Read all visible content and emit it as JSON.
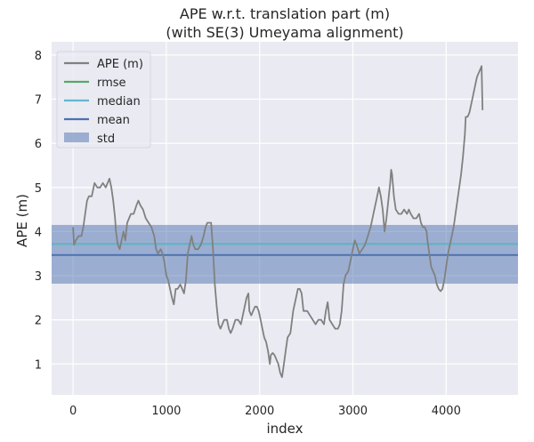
{
  "chart_data": {
    "type": "line",
    "title": "APE w.r.t. translation part (m)",
    "subtitle": "(with SE(3) Umeyama alignment)",
    "xlabel": "index",
    "ylabel": "APE (m)",
    "xlim": [
      -230,
      4770
    ],
    "ylim": [
      0.3,
      8.3
    ],
    "xticks": [
      0,
      1000,
      2000,
      3000,
      4000
    ],
    "yticks": [
      1,
      2,
      3,
      4,
      5,
      6,
      7,
      8
    ],
    "grid": true,
    "legend_position": "top-left",
    "stats": {
      "rmse": 3.72,
      "median": 3.72,
      "mean": 3.47,
      "std_low": 2.82,
      "std_high": 4.15
    },
    "legend": [
      {
        "key": "ape",
        "label": "APE (m)",
        "kind": "line",
        "color": "#808080"
      },
      {
        "key": "rmse",
        "label": "rmse",
        "kind": "line",
        "color": "#55a868"
      },
      {
        "key": "median",
        "label": "median",
        "kind": "line",
        "color": "#64b5cd"
      },
      {
        "key": "mean",
        "label": "mean",
        "kind": "line",
        "color": "#4c72b0"
      },
      {
        "key": "std",
        "label": "std",
        "kind": "patch",
        "color": "#4c72b0"
      }
    ],
    "series": [
      {
        "name": "APE (m)",
        "color": "#808080",
        "points": [
          [
            0,
            4.1
          ],
          [
            10,
            3.7
          ],
          [
            30,
            3.8
          ],
          [
            60,
            3.9
          ],
          [
            90,
            3.9
          ],
          [
            110,
            4.1
          ],
          [
            130,
            4.4
          ],
          [
            150,
            4.7
          ],
          [
            170,
            4.8
          ],
          [
            200,
            4.8
          ],
          [
            230,
            5.1
          ],
          [
            260,
            5.0
          ],
          [
            290,
            5.0
          ],
          [
            320,
            5.1
          ],
          [
            350,
            5.0
          ],
          [
            370,
            5.1
          ],
          [
            390,
            5.2
          ],
          [
            410,
            5.0
          ],
          [
            430,
            4.7
          ],
          [
            450,
            4.3
          ],
          [
            460,
            4.0
          ],
          [
            480,
            3.7
          ],
          [
            500,
            3.6
          ],
          [
            520,
            3.8
          ],
          [
            540,
            4.0
          ],
          [
            560,
            3.8
          ],
          [
            580,
            4.2
          ],
          [
            600,
            4.3
          ],
          [
            620,
            4.4
          ],
          [
            650,
            4.4
          ],
          [
            680,
            4.6
          ],
          [
            700,
            4.7
          ],
          [
            720,
            4.6
          ],
          [
            750,
            4.5
          ],
          [
            780,
            4.3
          ],
          [
            810,
            4.2
          ],
          [
            840,
            4.1
          ],
          [
            870,
            3.9
          ],
          [
            890,
            3.6
          ],
          [
            910,
            3.5
          ],
          [
            940,
            3.6
          ],
          [
            960,
            3.5
          ],
          [
            980,
            3.3
          ],
          [
            1000,
            3.0
          ],
          [
            1020,
            2.9
          ],
          [
            1040,
            2.7
          ],
          [
            1060,
            2.5
          ],
          [
            1080,
            2.35
          ],
          [
            1100,
            2.7
          ],
          [
            1120,
            2.7
          ],
          [
            1150,
            2.8
          ],
          [
            1170,
            2.7
          ],
          [
            1190,
            2.6
          ],
          [
            1210,
            2.9
          ],
          [
            1230,
            3.5
          ],
          [
            1250,
            3.7
          ],
          [
            1270,
            3.9
          ],
          [
            1290,
            3.7
          ],
          [
            1310,
            3.6
          ],
          [
            1340,
            3.6
          ],
          [
            1370,
            3.7
          ],
          [
            1400,
            3.9
          ],
          [
            1420,
            4.1
          ],
          [
            1440,
            4.2
          ],
          [
            1460,
            4.2
          ],
          [
            1480,
            4.2
          ],
          [
            1500,
            3.6
          ],
          [
            1520,
            2.8
          ],
          [
            1540,
            2.3
          ],
          [
            1560,
            1.9
          ],
          [
            1580,
            1.8
          ],
          [
            1600,
            1.9
          ],
          [
            1620,
            2.0
          ],
          [
            1650,
            2.0
          ],
          [
            1670,
            1.8
          ],
          [
            1690,
            1.7
          ],
          [
            1710,
            1.8
          ],
          [
            1740,
            2.0
          ],
          [
            1770,
            2.0
          ],
          [
            1800,
            1.9
          ],
          [
            1820,
            2.1
          ],
          [
            1840,
            2.3
          ],
          [
            1860,
            2.5
          ],
          [
            1880,
            2.6
          ],
          [
            1890,
            2.2
          ],
          [
            1910,
            2.1
          ],
          [
            1930,
            2.2
          ],
          [
            1950,
            2.3
          ],
          [
            1970,
            2.3
          ],
          [
            1990,
            2.2
          ],
          [
            2010,
            2.0
          ],
          [
            2030,
            1.8
          ],
          [
            2050,
            1.6
          ],
          [
            2070,
            1.5
          ],
          [
            2090,
            1.3
          ],
          [
            2110,
            1.0
          ],
          [
            2120,
            1.2
          ],
          [
            2140,
            1.25
          ],
          [
            2160,
            1.2
          ],
          [
            2180,
            1.1
          ],
          [
            2200,
            1.0
          ],
          [
            2220,
            0.8
          ],
          [
            2240,
            0.7
          ],
          [
            2260,
            1.0
          ],
          [
            2280,
            1.3
          ],
          [
            2300,
            1.6
          ],
          [
            2330,
            1.7
          ],
          [
            2360,
            2.2
          ],
          [
            2390,
            2.5
          ],
          [
            2410,
            2.7
          ],
          [
            2430,
            2.7
          ],
          [
            2450,
            2.6
          ],
          [
            2470,
            2.2
          ],
          [
            2490,
            2.2
          ],
          [
            2510,
            2.2
          ],
          [
            2540,
            2.1
          ],
          [
            2570,
            2.0
          ],
          [
            2600,
            1.9
          ],
          [
            2630,
            2.0
          ],
          [
            2660,
            2.0
          ],
          [
            2690,
            1.9
          ],
          [
            2710,
            2.2
          ],
          [
            2730,
            2.4
          ],
          [
            2750,
            2.0
          ],
          [
            2780,
            1.9
          ],
          [
            2810,
            1.8
          ],
          [
            2840,
            1.8
          ],
          [
            2860,
            1.9
          ],
          [
            2880,
            2.2
          ],
          [
            2900,
            2.8
          ],
          [
            2920,
            3.0
          ],
          [
            2950,
            3.1
          ],
          [
            2970,
            3.3
          ],
          [
            3000,
            3.6
          ],
          [
            3020,
            3.8
          ],
          [
            3040,
            3.7
          ],
          [
            3070,
            3.5
          ],
          [
            3100,
            3.6
          ],
          [
            3130,
            3.7
          ],
          [
            3160,
            3.9
          ],
          [
            3190,
            4.1
          ],
          [
            3210,
            4.3
          ],
          [
            3230,
            4.5
          ],
          [
            3260,
            4.8
          ],
          [
            3280,
            5.0
          ],
          [
            3300,
            4.8
          ],
          [
            3320,
            4.5
          ],
          [
            3340,
            4.0
          ],
          [
            3360,
            4.3
          ],
          [
            3380,
            4.7
          ],
          [
            3400,
            5.1
          ],
          [
            3410,
            5.4
          ],
          [
            3420,
            5.3
          ],
          [
            3440,
            4.8
          ],
          [
            3460,
            4.5
          ],
          [
            3490,
            4.4
          ],
          [
            3520,
            4.4
          ],
          [
            3550,
            4.5
          ],
          [
            3580,
            4.4
          ],
          [
            3600,
            4.5
          ],
          [
            3620,
            4.4
          ],
          [
            3650,
            4.3
          ],
          [
            3680,
            4.3
          ],
          [
            3710,
            4.4
          ],
          [
            3730,
            4.2
          ],
          [
            3750,
            4.1
          ],
          [
            3770,
            4.1
          ],
          [
            3790,
            4.0
          ],
          [
            3800,
            3.8
          ],
          [
            3820,
            3.5
          ],
          [
            3840,
            3.2
          ],
          [
            3860,
            3.1
          ],
          [
            3880,
            3.0
          ],
          [
            3900,
            2.8
          ],
          [
            3920,
            2.7
          ],
          [
            3940,
            2.65
          ],
          [
            3960,
            2.7
          ],
          [
            3980,
            2.9
          ],
          [
            4000,
            3.2
          ],
          [
            4020,
            3.5
          ],
          [
            4040,
            3.7
          ],
          [
            4060,
            3.9
          ],
          [
            4080,
            4.1
          ],
          [
            4100,
            4.4
          ],
          [
            4120,
            4.7
          ],
          [
            4140,
            5.0
          ],
          [
            4160,
            5.3
          ],
          [
            4180,
            5.7
          ],
          [
            4200,
            6.2
          ],
          [
            4210,
            6.6
          ],
          [
            4230,
            6.6
          ],
          [
            4250,
            6.7
          ],
          [
            4270,
            6.9
          ],
          [
            4290,
            7.1
          ],
          [
            4310,
            7.3
          ],
          [
            4330,
            7.5
          ],
          [
            4350,
            7.6
          ],
          [
            4370,
            7.7
          ],
          [
            4380,
            7.75
          ],
          [
            4385,
            7.2
          ],
          [
            4390,
            6.75
          ]
        ]
      }
    ]
  }
}
